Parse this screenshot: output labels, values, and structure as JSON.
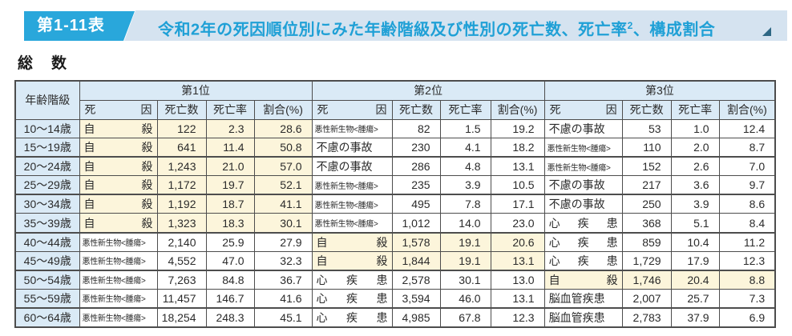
{
  "header": {
    "badge": "第1-11表",
    "title_main": "令和2年の死因順位別にみた年齢階級及び性別の死亡数、死亡率",
    "title_sup": "2",
    "title_tail": "、構成割合",
    "subtitle": "総　数"
  },
  "table": {
    "age_header": "年齢階級",
    "rank_headers": [
      "第1位",
      "第2位",
      "第3位"
    ],
    "sub_headers": {
      "cause": "死因",
      "deaths": "死亡数",
      "rate": "死亡率",
      "pct": "割合(%)"
    },
    "rows": [
      {
        "age": "10〜14歳",
        "thick_top": false,
        "ranks": [
          {
            "cause": "自殺",
            "deaths": "122",
            "rate": "2.3",
            "pct": "28.6",
            "hl": true
          },
          {
            "cause": "悪性新生物<腫瘍>",
            "deaths": "82",
            "rate": "1.5",
            "pct": "19.2",
            "hl": false
          },
          {
            "cause": "不慮の事故",
            "deaths": "53",
            "rate": "1.0",
            "pct": "12.4",
            "hl": false
          }
        ]
      },
      {
        "age": "15〜19歳",
        "thick_top": false,
        "ranks": [
          {
            "cause": "自殺",
            "deaths": "641",
            "rate": "11.4",
            "pct": "50.8",
            "hl": true
          },
          {
            "cause": "不慮の事故",
            "deaths": "230",
            "rate": "4.1",
            "pct": "18.2",
            "hl": false
          },
          {
            "cause": "悪性新生物<腫瘍>",
            "deaths": "110",
            "rate": "2.0",
            "pct": "8.7",
            "hl": false
          }
        ]
      },
      {
        "age": "20〜24歳",
        "thick_top": true,
        "ranks": [
          {
            "cause": "自殺",
            "deaths": "1,243",
            "rate": "21.0",
            "pct": "57.0",
            "hl": true
          },
          {
            "cause": "不慮の事故",
            "deaths": "286",
            "rate": "4.8",
            "pct": "13.1",
            "hl": false
          },
          {
            "cause": "悪性新生物<腫瘍>",
            "deaths": "152",
            "rate": "2.6",
            "pct": "7.0",
            "hl": false
          }
        ]
      },
      {
        "age": "25〜29歳",
        "thick_top": false,
        "ranks": [
          {
            "cause": "自殺",
            "deaths": "1,172",
            "rate": "19.7",
            "pct": "52.1",
            "hl": true
          },
          {
            "cause": "悪性新生物<腫瘍>",
            "deaths": "235",
            "rate": "3.9",
            "pct": "10.5",
            "hl": false
          },
          {
            "cause": "不慮の事故",
            "deaths": "217",
            "rate": "3.6",
            "pct": "9.7",
            "hl": false
          }
        ]
      },
      {
        "age": "30〜34歳",
        "thick_top": true,
        "ranks": [
          {
            "cause": "自殺",
            "deaths": "1,192",
            "rate": "18.7",
            "pct": "41.1",
            "hl": true
          },
          {
            "cause": "悪性新生物<腫瘍>",
            "deaths": "495",
            "rate": "7.8",
            "pct": "17.1",
            "hl": false
          },
          {
            "cause": "不慮の事故",
            "deaths": "250",
            "rate": "3.9",
            "pct": "8.6",
            "hl": false
          }
        ]
      },
      {
        "age": "35〜39歳",
        "thick_top": false,
        "ranks": [
          {
            "cause": "自殺",
            "deaths": "1,323",
            "rate": "18.3",
            "pct": "30.1",
            "hl": true
          },
          {
            "cause": "悪性新生物<腫瘍>",
            "deaths": "1,012",
            "rate": "14.0",
            "pct": "23.0",
            "hl": false
          },
          {
            "cause": "心疾患",
            "deaths": "368",
            "rate": "5.1",
            "pct": "8.4",
            "hl": false
          }
        ]
      },
      {
        "age": "40〜44歳",
        "thick_top": true,
        "ranks": [
          {
            "cause": "悪性新生物<腫瘍>",
            "deaths": "2,140",
            "rate": "25.9",
            "pct": "27.9",
            "hl": false
          },
          {
            "cause": "自殺",
            "deaths": "1,578",
            "rate": "19.1",
            "pct": "20.6",
            "hl": true
          },
          {
            "cause": "心疾患",
            "deaths": "859",
            "rate": "10.4",
            "pct": "11.2",
            "hl": false
          }
        ]
      },
      {
        "age": "45〜49歳",
        "thick_top": false,
        "ranks": [
          {
            "cause": "悪性新生物<腫瘍>",
            "deaths": "4,552",
            "rate": "47.0",
            "pct": "32.3",
            "hl": false
          },
          {
            "cause": "自殺",
            "deaths": "1,844",
            "rate": "19.1",
            "pct": "13.1",
            "hl": true
          },
          {
            "cause": "心疾患",
            "deaths": "1,729",
            "rate": "17.9",
            "pct": "12.3",
            "hl": false
          }
        ]
      },
      {
        "age": "50〜54歳",
        "thick_top": true,
        "ranks": [
          {
            "cause": "悪性新生物<腫瘍>",
            "deaths": "7,263",
            "rate": "84.8",
            "pct": "36.7",
            "hl": false
          },
          {
            "cause": "心疾患",
            "deaths": "2,578",
            "rate": "30.1",
            "pct": "13.0",
            "hl": false
          },
          {
            "cause": "自殺",
            "deaths": "1,746",
            "rate": "20.4",
            "pct": "8.8",
            "hl": true
          }
        ]
      },
      {
        "age": "55〜59歳",
        "thick_top": false,
        "ranks": [
          {
            "cause": "悪性新生物<腫瘍>",
            "deaths": "11,457",
            "rate": "146.7",
            "pct": "41.6",
            "hl": false
          },
          {
            "cause": "心疾患",
            "deaths": "3,594",
            "rate": "46.0",
            "pct": "13.1",
            "hl": false
          },
          {
            "cause": "脳血管疾患",
            "deaths": "2,007",
            "rate": "25.7",
            "pct": "7.3",
            "hl": false
          }
        ]
      },
      {
        "age": "60〜64歳",
        "thick_top": true,
        "ranks": [
          {
            "cause": "悪性新生物<腫瘍>",
            "deaths": "18,254",
            "rate": "248.3",
            "pct": "45.1",
            "hl": false
          },
          {
            "cause": "心疾患",
            "deaths": "4,985",
            "rate": "67.8",
            "pct": "12.3",
            "hl": false
          },
          {
            "cause": "脳血管疾患",
            "deaths": "2,783",
            "rate": "37.9",
            "pct": "6.9",
            "hl": false
          }
        ]
      }
    ]
  },
  "colors": {
    "accent_cyan": "#29a7db",
    "strip_bg": "#d5e3f0",
    "table_header_bg": "#daeaf6",
    "highlight_yellow": "#fcf5db",
    "border": "#4d4d4d",
    "fold_triangle": "#2e6784"
  }
}
